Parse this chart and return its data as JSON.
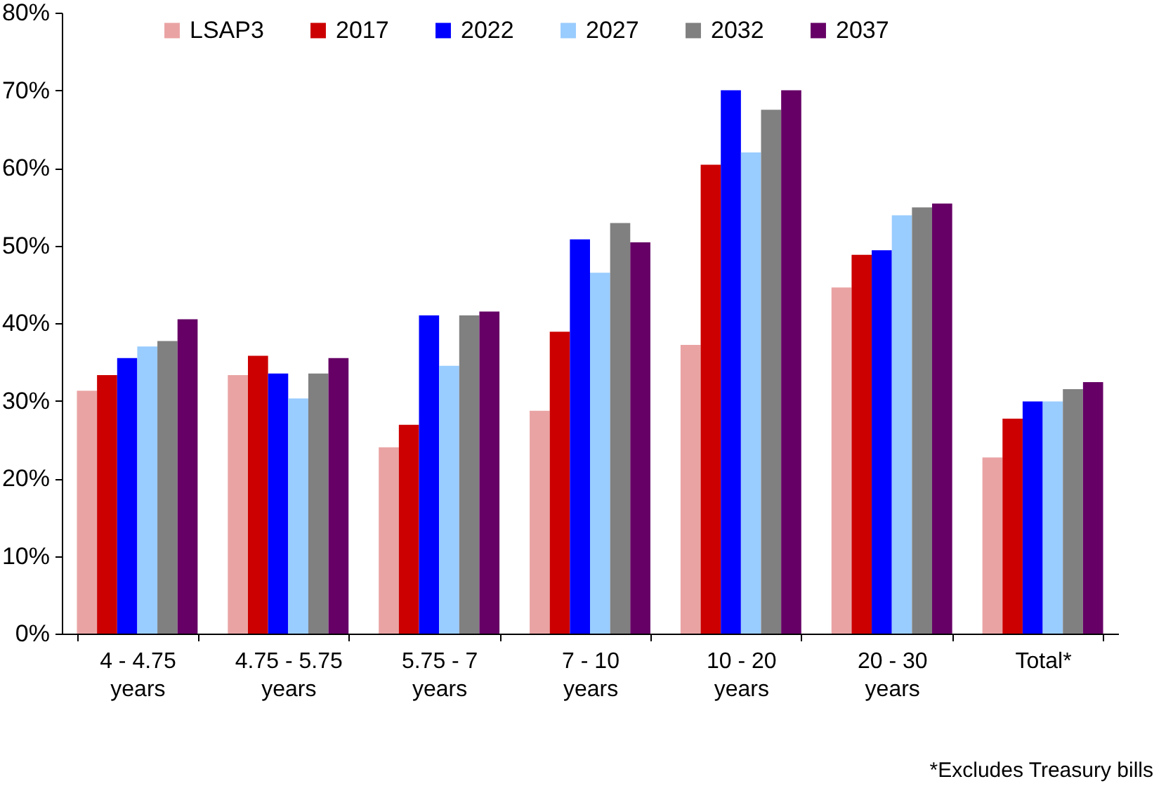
{
  "chart_data": {
    "type": "bar",
    "categories": [
      "4 - 4.75 years",
      "4.75 - 5.75 years",
      "5.75 - 7 years",
      "7 - 10 years",
      "10 - 20 years",
      "20 - 30 years",
      "Total*"
    ],
    "series": [
      {
        "name": "LSAP3",
        "color": "#eaa3a3",
        "values": [
          31.3,
          33.3,
          24,
          28.7,
          37.2,
          44.6,
          22.7
        ]
      },
      {
        "name": "2017",
        "color": "#cc0000",
        "values": [
          33.3,
          35.8,
          26.9,
          38.9,
          60.4,
          48.8,
          27.7
        ]
      },
      {
        "name": "2022",
        "color": "#0000ff",
        "values": [
          35.5,
          33.5,
          41,
          50.8,
          70,
          49.4,
          29.9
        ]
      },
      {
        "name": "2027",
        "color": "#99ccff",
        "values": [
          37,
          30.3,
          34.5,
          46.5,
          62,
          53.9,
          29.9
        ]
      },
      {
        "name": "2032",
        "color": "#808080",
        "values": [
          37.7,
          33.5,
          41,
          52.9,
          67.5,
          54.9,
          31.5
        ]
      },
      {
        "name": "2037",
        "color": "#660066",
        "values": [
          40.5,
          35.5,
          41.5,
          50.4,
          70,
          55.4,
          32.4
        ]
      }
    ],
    "ylim": [
      0,
      80
    ],
    "yticks": [
      {
        "value": 0,
        "label": "0%"
      },
      {
        "value": 10,
        "label": "10%"
      },
      {
        "value": 20,
        "label": "20%"
      },
      {
        "value": 30,
        "label": "30%"
      },
      {
        "value": 40,
        "label": "40%"
      },
      {
        "value": 50,
        "label": "50%"
      },
      {
        "value": 60,
        "label": "60%"
      },
      {
        "value": 70,
        "label": "70%"
      },
      {
        "value": 80,
        "label": "80%"
      }
    ],
    "grid": false,
    "legend": "top",
    "annotations": [
      "*Excludes Treasury bills"
    ]
  }
}
